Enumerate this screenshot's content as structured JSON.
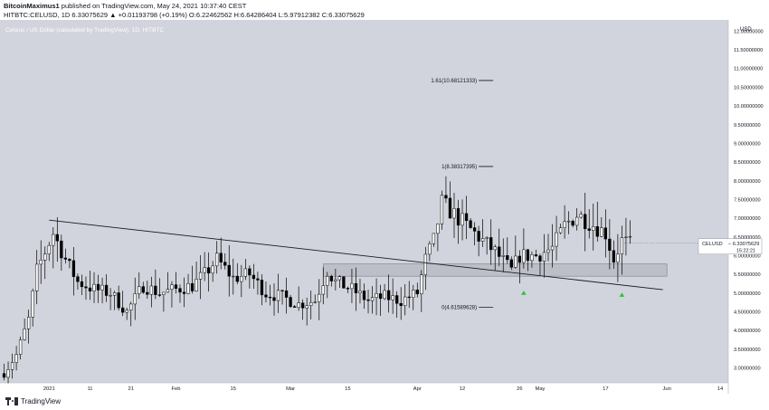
{
  "header": {
    "publisher_line": {
      "author": "BitcoinMaximus1",
      "text": " published on TradingView.com, May 24, 2021 10:37:40 CEST"
    },
    "ohlc_line": "HITBTC:CELUSD, 1D  6.33075629 ▲ +0.01193798 (+0.19%)  O:6.22462562  H:6.64286404  L:5.97912382  C:6.33075629"
  },
  "footer": {
    "brand": "TradingView"
  },
  "colors": {
    "plot_background": "#d1d4dc",
    "candle": "#000000",
    "trendline": "#1a1a1a",
    "support_zone": "#b8bbc4",
    "marker": "#21c734",
    "price_label": "#ffffff"
  },
  "chart_data": {
    "type": "candlestick",
    "title": "Celsius / US Dollar (calculated by TradingView), 1D, HITBTC",
    "symbol": "CELUSD",
    "currency_label": "USD",
    "price_scale": "linear",
    "ylim": [
      2.6,
      12.3
    ],
    "y_ticks": [
      "3.00000000",
      "3.50000000",
      "4.00000000",
      "4.50000000",
      "5.00000000",
      "5.50000000",
      "6.00000000",
      "6.50000000",
      "7.00000000",
      "7.50000000",
      "8.00000000",
      "8.50000000",
      "9.00000000",
      "9.50000000",
      "10.00000000",
      "10.50000000",
      "11.00000000",
      "11.50000000",
      "12.00000000"
    ],
    "x_range": [
      "2020-12-20",
      "2021-06-16"
    ],
    "x_ticks": [
      {
        "date": "2021-01-01",
        "label": "2021"
      },
      {
        "date": "2021-01-11",
        "label": "11"
      },
      {
        "date": "2021-01-21",
        "label": "21"
      },
      {
        "date": "2021-02-01",
        "label": "Feb"
      },
      {
        "date": "2021-02-15",
        "label": "15"
      },
      {
        "date": "2021-03-01",
        "label": "Mar"
      },
      {
        "date": "2021-03-15",
        "label": "15"
      },
      {
        "date": "2021-04-01",
        "label": "Apr"
      },
      {
        "date": "2021-04-12",
        "label": "12"
      },
      {
        "date": "2021-04-26",
        "label": "26"
      },
      {
        "date": "2021-05-01",
        "label": "May"
      },
      {
        "date": "2021-05-17",
        "label": "17"
      },
      {
        "date": "2021-06-01",
        "label": "Jun"
      },
      {
        "date": "2021-06-14",
        "label": "14"
      }
    ],
    "current_price": {
      "value": 6.33075629,
      "symbol": "CELUSD",
      "value_label": "6.33075629",
      "countdown": "15:22:21"
    },
    "ohlc_points": [
      [
        "2020-12-21",
        2.85
      ],
      [
        "2020-12-24",
        3.35
      ],
      [
        "2020-12-27",
        4.3
      ],
      [
        "2020-12-29",
        5.6
      ],
      [
        "2021-01-02",
        6.6
      ],
      [
        "2021-01-05",
        5.9
      ],
      [
        "2021-01-08",
        5.3
      ],
      [
        "2021-01-12",
        5.1
      ],
      [
        "2021-01-16",
        5.0
      ],
      [
        "2021-01-20",
        4.5
      ],
      [
        "2021-01-24",
        5.2
      ],
      [
        "2021-01-28",
        5.0
      ],
      [
        "2021-02-01",
        5.1
      ],
      [
        "2021-02-05",
        5.2
      ],
      [
        "2021-02-08",
        5.5
      ],
      [
        "2021-02-11",
        5.9
      ],
      [
        "2021-02-15",
        5.4
      ],
      [
        "2021-02-19",
        5.5
      ],
      [
        "2021-02-23",
        5.0
      ],
      [
        "2021-02-27",
        4.9
      ],
      [
        "2021-03-03",
        4.7
      ],
      [
        "2021-03-07",
        4.8
      ],
      [
        "2021-03-10",
        5.6
      ],
      [
        "2021-03-12",
        5.3
      ],
      [
        "2021-03-16",
        5.1
      ],
      [
        "2021-03-20",
        4.8
      ],
      [
        "2021-03-24",
        4.9
      ],
      [
        "2021-03-28",
        4.8
      ],
      [
        "2021-04-01",
        5.0
      ],
      [
        "2021-04-03",
        5.9
      ],
      [
        "2021-04-05",
        6.4
      ],
      [
        "2021-04-07",
        7.4
      ],
      [
        "2021-04-09",
        7.2
      ],
      [
        "2021-04-12",
        6.9
      ],
      [
        "2021-04-16",
        6.5
      ],
      [
        "2021-04-20",
        6.1
      ],
      [
        "2021-04-24",
        5.6
      ],
      [
        "2021-04-26",
        6.0
      ],
      [
        "2021-04-30",
        6.0
      ],
      [
        "2021-05-04",
        6.2
      ],
      [
        "2021-05-07",
        6.8
      ],
      [
        "2021-05-10",
        7.1
      ],
      [
        "2021-05-13",
        6.9
      ],
      [
        "2021-05-17",
        6.6
      ],
      [
        "2021-05-19",
        5.9
      ],
      [
        "2021-05-21",
        6.4
      ],
      [
        "2021-05-23",
        6.3
      ]
    ],
    "drawings": {
      "trendline": {
        "from": [
          "2021-01-01",
          6.95
        ],
        "to": [
          "2021-05-31",
          5.09
        ]
      },
      "support_zone": {
        "from": "2021-03-09",
        "to": "2021-06-01",
        "low": 5.45,
        "high": 5.78
      },
      "fib_levels": [
        {
          "ratio": "1.61",
          "price": 10.68121333,
          "label": "1.61(10.68121333)"
        },
        {
          "ratio": "1",
          "price": 8.38317395,
          "label": "1(8.38317395)"
        },
        {
          "ratio": "0",
          "price": 4.61589628,
          "label": "0(4.61589628)"
        }
      ],
      "fib_x_range": [
        "2021-04-06",
        "2021-04-16"
      ],
      "markers": [
        {
          "date": "2021-04-27",
          "price": 5.0,
          "shape": "triangle-up"
        },
        {
          "date": "2021-05-21",
          "price": 4.95,
          "shape": "triangle-up"
        }
      ]
    }
  }
}
